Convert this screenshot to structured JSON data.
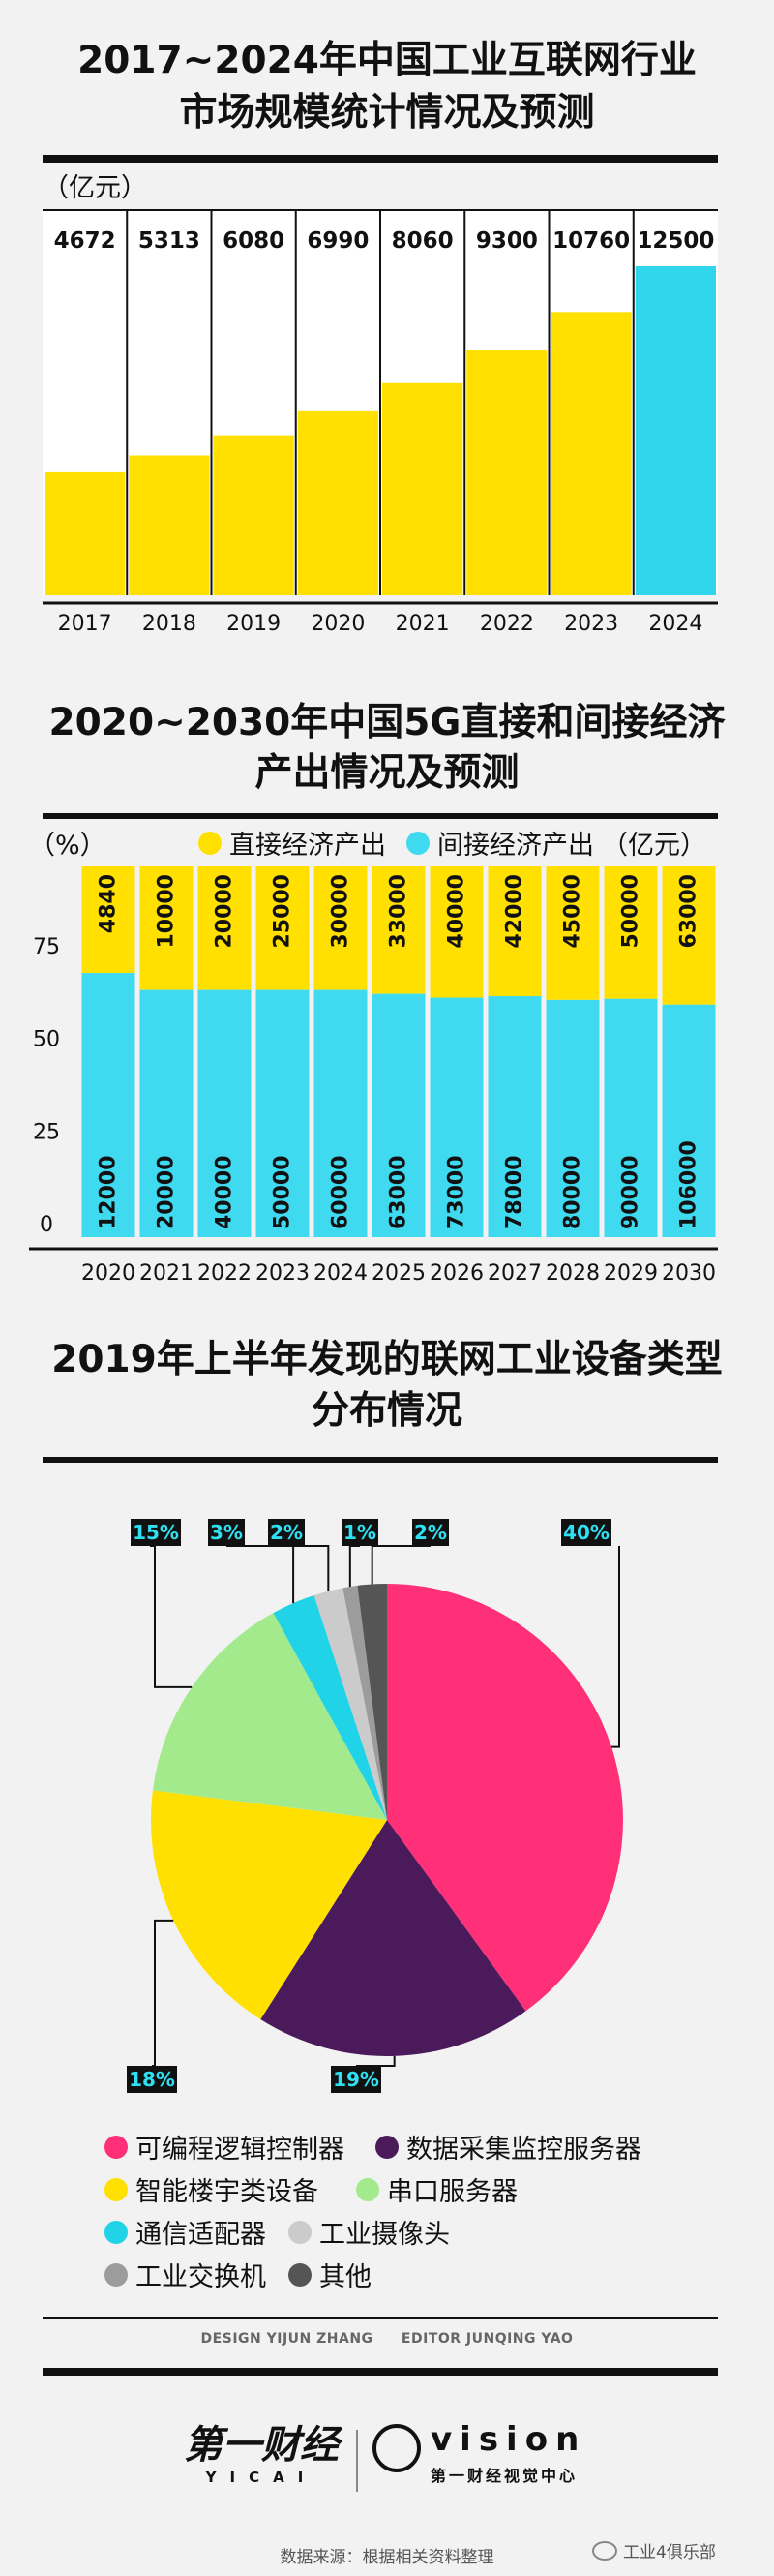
{
  "chart_data": [
    {
      "type": "bar",
      "title": "2017~2024年中国工业互联网行业市场规模统计情况及预测",
      "title_lines": [
        "2017~2024年中国工业互联网行业",
        "市场规模统计情况及预测"
      ],
      "unit": "（亿元）",
      "categories": [
        "2017",
        "2018",
        "2019",
        "2020",
        "2021",
        "2022",
        "2023",
        "2024"
      ],
      "values": [
        4672,
        5313,
        6080,
        6990,
        8060,
        9300,
        10760,
        12500
      ],
      "ylim": [
        0,
        12500
      ],
      "colors": [
        "#ffe000",
        "#ffe000",
        "#ffe000",
        "#ffe000",
        "#ffe000",
        "#ffe000",
        "#ffe000",
        "#2fd6ec"
      ]
    },
    {
      "type": "bar",
      "stacked": "percent",
      "title": "2020~2030年中国5G直接和间接经济产出情况及预测",
      "title_lines": [
        "2020~2030年中国5G直接和间接经济",
        "产出情况及预测"
      ],
      "unit_left": "（%）",
      "unit_right": "（亿元）",
      "categories": [
        "2020",
        "2021",
        "2022",
        "2023",
        "2024",
        "2025",
        "2026",
        "2027",
        "2028",
        "2029",
        "2030"
      ],
      "ylim": [
        0,
        100
      ],
      "yticks": [
        "75",
        "50",
        "25",
        "0"
      ],
      "series": [
        {
          "name": "间接经济产出",
          "color": "#3fd9f0",
          "values": [
            12000,
            20000,
            40000,
            50000,
            60000,
            63000,
            73000,
            78000,
            80000,
            90000,
            106000
          ]
        },
        {
          "name": "直接经济产出",
          "color": "#ffe000",
          "values": [
            4840,
            10000,
            20000,
            25000,
            30000,
            33000,
            40000,
            42000,
            45000,
            50000,
            63000
          ]
        }
      ],
      "legend": [
        {
          "name": "直接经济产出",
          "color": "#ffe000"
        },
        {
          "name": "间接经济产出",
          "color": "#3fd9f0"
        }
      ]
    },
    {
      "type": "pie",
      "title": "2019年上半年发现的联网工业设备类型分布情况",
      "title_lines": [
        "2019年上半年发现的联网工业设备类型",
        "分布情况"
      ],
      "slices": [
        {
          "name": "可编程逻辑控制器",
          "value": 40,
          "label": "40%",
          "color": "#ff2f78"
        },
        {
          "name": "数据采集监控服务器",
          "value": 19,
          "label": "19%",
          "color": "#4a1a5b"
        },
        {
          "name": "智能楼宇类设备",
          "value": 18,
          "label": "18%",
          "color": "#ffe000"
        },
        {
          "name": "串口服务器",
          "value": 15,
          "label": "15%",
          "color": "#a2ea8c"
        },
        {
          "name": "通信适配器",
          "value": 3,
          "label": "3%",
          "color": "#21d3e6"
        },
        {
          "name": "工业摄像头",
          "value": 2,
          "label": "2%",
          "color": "#cbcbcb"
        },
        {
          "name": "工业交换机",
          "value": 1,
          "label": "1%",
          "color": "#9c9c9c"
        },
        {
          "name": "其他",
          "value": 2,
          "label": "2%",
          "color": "#555555"
        }
      ]
    }
  ],
  "credits": {
    "design": "DESIGN YIJUN ZHANG",
    "editor": "EDITOR JUNQING YAO"
  },
  "brand": {
    "yicai_cn": "第一财经",
    "yicai_en": "YICAI",
    "vision": "vision",
    "vision_cn": "第一财经视觉中心"
  },
  "source": "数据来源：根据相关资料整理",
  "watermark": "工业4俱乐部"
}
